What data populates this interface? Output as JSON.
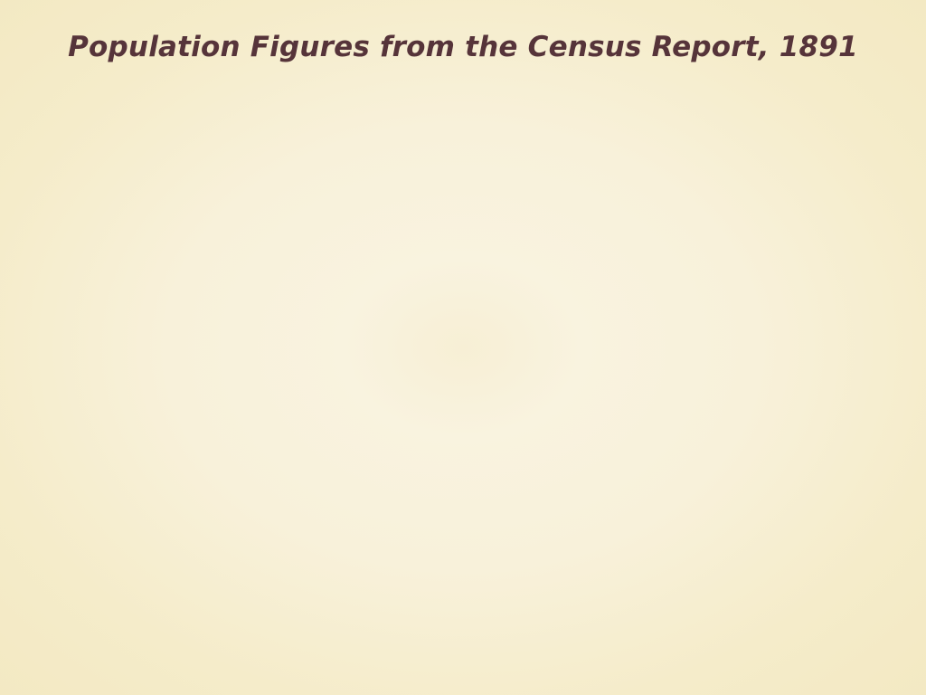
{
  "slide": {
    "title": "Population Figures from the Census Report, 1891"
  },
  "colors": {
    "title_text": "#56343a",
    "background_center": "#f9f3df",
    "background_edge": "#f3e9c3"
  }
}
